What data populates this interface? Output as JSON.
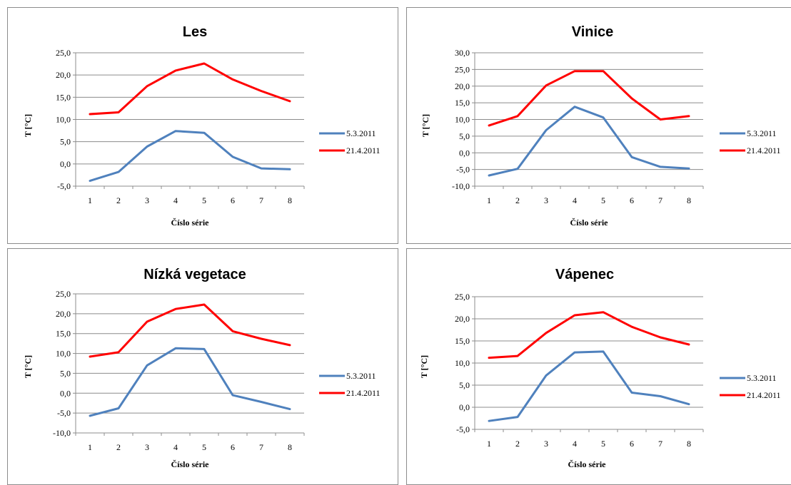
{
  "chart_data": [
    {
      "type": "line",
      "title": "Les",
      "xlabel": "Číslo série",
      "ylabel": "T [°C]",
      "categories": [
        "1",
        "2",
        "3",
        "4",
        "5",
        "6",
        "7",
        "8"
      ],
      "y_ticks": [
        "-5,0",
        "0,0",
        "5,0",
        "10,0",
        "15,0",
        "20,0",
        "25,0"
      ],
      "ylim": [
        -5,
        25
      ],
      "grid": true,
      "legend_position": "right",
      "series": [
        {
          "name": "5.3.2011",
          "color": "#4f81bd",
          "values": [
            -3.8,
            -1.8,
            3.9,
            7.4,
            7.0,
            1.6,
            -1.0,
            -1.2
          ]
        },
        {
          "name": "21.4.2011",
          "color": "#ff0000",
          "values": [
            11.2,
            11.6,
            17.5,
            21.0,
            22.6,
            19.0,
            16.4,
            14.1
          ]
        }
      ]
    },
    {
      "type": "line",
      "title": "Vinice",
      "xlabel": "Číslo série",
      "ylabel": "T [°C]",
      "categories": [
        "1",
        "2",
        "3",
        "4",
        "5",
        "6",
        "7",
        "8"
      ],
      "y_ticks": [
        "-10,0",
        "-5,0",
        "0,0",
        "5,0",
        "10,0",
        "15,0",
        "20,0",
        "25,0",
        "30,0"
      ],
      "ylim": [
        -10,
        30
      ],
      "grid": true,
      "legend_position": "right",
      "series": [
        {
          "name": "5.3.2011",
          "color": "#4f81bd",
          "values": [
            -6.8,
            -4.8,
            6.8,
            13.8,
            10.6,
            -1.3,
            -4.2,
            -4.7
          ]
        },
        {
          "name": "21.4.2011",
          "color": "#ff0000",
          "values": [
            8.2,
            11.0,
            20.2,
            24.5,
            24.5,
            16.3,
            10.0,
            11.0
          ]
        }
      ]
    },
    {
      "type": "line",
      "title": "Nízká vegetace",
      "xlabel": "Číslo série",
      "ylabel": "T [°C]",
      "categories": [
        "1",
        "2",
        "3",
        "4",
        "5",
        "6",
        "7",
        "8"
      ],
      "y_ticks": [
        "-10,0",
        "-5,0",
        "0,0",
        "5,0",
        "10,0",
        "15,0",
        "20,0",
        "25,0"
      ],
      "ylim": [
        -10,
        25
      ],
      "grid": true,
      "legend_position": "right",
      "series": [
        {
          "name": "5.3.2011",
          "color": "#4f81bd",
          "values": [
            -5.7,
            -3.8,
            7.0,
            11.3,
            11.1,
            -0.5,
            -2.2,
            -4.0
          ]
        },
        {
          "name": "21.4.2011",
          "color": "#ff0000",
          "values": [
            9.2,
            10.3,
            18.0,
            21.2,
            22.3,
            15.6,
            13.7,
            12.1
          ]
        }
      ]
    },
    {
      "type": "line",
      "title": "Vápenec",
      "xlabel": "Číslo série",
      "ylabel": "T [°C]",
      "categories": [
        "1",
        "2",
        "3",
        "4",
        "5",
        "6",
        "7",
        "8"
      ],
      "y_ticks": [
        "-5,0",
        "0,0",
        "5,0",
        "10,0",
        "15,0",
        "20,0",
        "25,0"
      ],
      "ylim": [
        -5,
        25
      ],
      "grid": true,
      "legend_position": "right",
      "series": [
        {
          "name": "5.3.2011",
          "color": "#4f81bd",
          "values": [
            -3.1,
            -2.2,
            7.2,
            12.4,
            12.6,
            3.3,
            2.5,
            0.7
          ]
        },
        {
          "name": "21.4.2011",
          "color": "#ff0000",
          "values": [
            11.2,
            11.6,
            16.8,
            20.8,
            21.5,
            18.2,
            15.8,
            14.2
          ]
        }
      ]
    }
  ]
}
